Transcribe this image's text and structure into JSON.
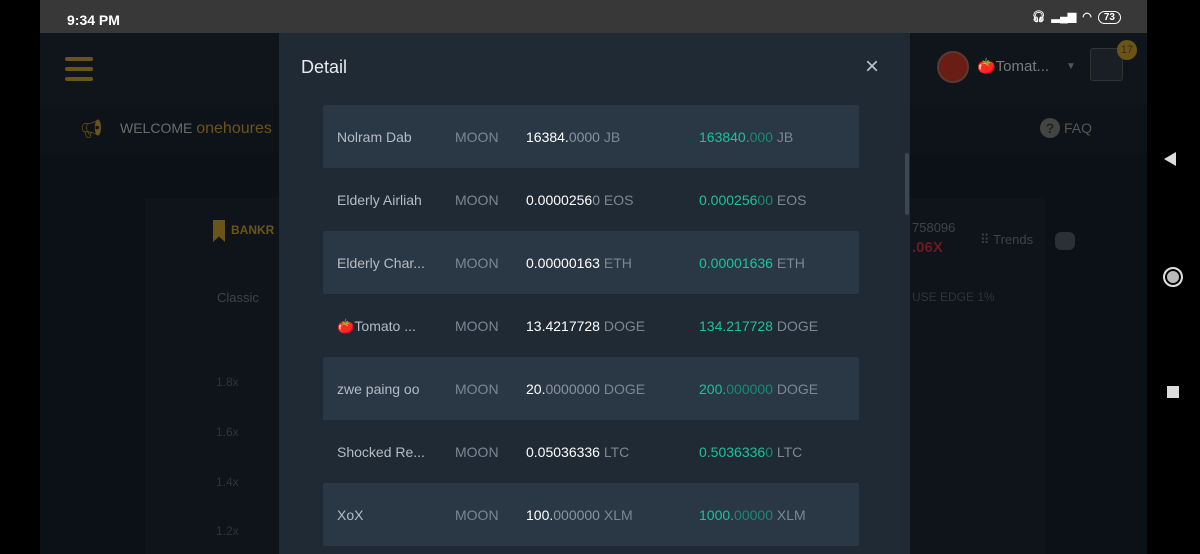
{
  "status_bar": {
    "time": "9:34 PM",
    "battery": "73",
    "icons": [
      "headphones-icon",
      "signal-icon",
      "signal-icon",
      "wifi-icon",
      "battery-icon"
    ]
  },
  "appbar": {
    "username": "🍅Tomat...",
    "notification_count": "17"
  },
  "welcome": {
    "prefix": "WELCOME ",
    "name": "onehoures",
    "faq": "FAQ"
  },
  "background": {
    "bankroll": "BANKR",
    "tab": "Classic",
    "y_ticks": [
      "1.8x",
      "1.6x",
      "1.4x",
      "1.2x"
    ],
    "right_number": "758096",
    "right_multiplier": ".06X",
    "trends": "Trends",
    "house_edge": "USE EDGE 1%"
  },
  "modal": {
    "title": "Detail",
    "close": "×",
    "rows": [
      {
        "name": "Nolram Dab",
        "game": "MOON",
        "amount": "16384.",
        "amount_dim": "0000",
        "currency": "JB",
        "payout": "163840.",
        "payout_dim": "000",
        "payout_currency": "JB"
      },
      {
        "name": "Elderly Airliah",
        "game": "MOON",
        "amount": "0.0000256",
        "amount_dim": "0",
        "currency": "EOS",
        "payout": "0.000256",
        "payout_dim": "00",
        "payout_currency": "EOS"
      },
      {
        "name": "Elderly Char...",
        "game": "MOON",
        "amount": "0.00000163",
        "amount_dim": "",
        "currency": "ETH",
        "payout": "0.00001636",
        "payout_dim": "",
        "payout_currency": "ETH"
      },
      {
        "name": "🍅Tomato ...",
        "game": "MOON",
        "amount": "13.4217728",
        "amount_dim": "",
        "currency": "DOGE",
        "payout": "134.217728",
        "payout_dim": "",
        "payout_currency": "DOGE"
      },
      {
        "name": "zwe paing oo",
        "game": "MOON",
        "amount": "20.",
        "amount_dim": "0000000",
        "currency": "DOGE",
        "payout": "200.",
        "payout_dim": "000000",
        "payout_currency": "DOGE"
      },
      {
        "name": "Shocked Re...",
        "game": "MOON",
        "amount": "0.05036336",
        "amount_dim": "",
        "currency": "LTC",
        "payout": "0.5036336",
        "payout_dim": "0",
        "payout_currency": "LTC"
      },
      {
        "name": "XoX",
        "game": "MOON",
        "amount": "100.",
        "amount_dim": "000000",
        "currency": "XLM",
        "payout": "1000.",
        "payout_dim": "00000",
        "payout_currency": "XLM"
      }
    ]
  },
  "colors": {
    "payout": "#1fc19a",
    "accent": "#6b5418",
    "modal_bg": "#1f2a35",
    "row_alt": "#2a3744"
  }
}
